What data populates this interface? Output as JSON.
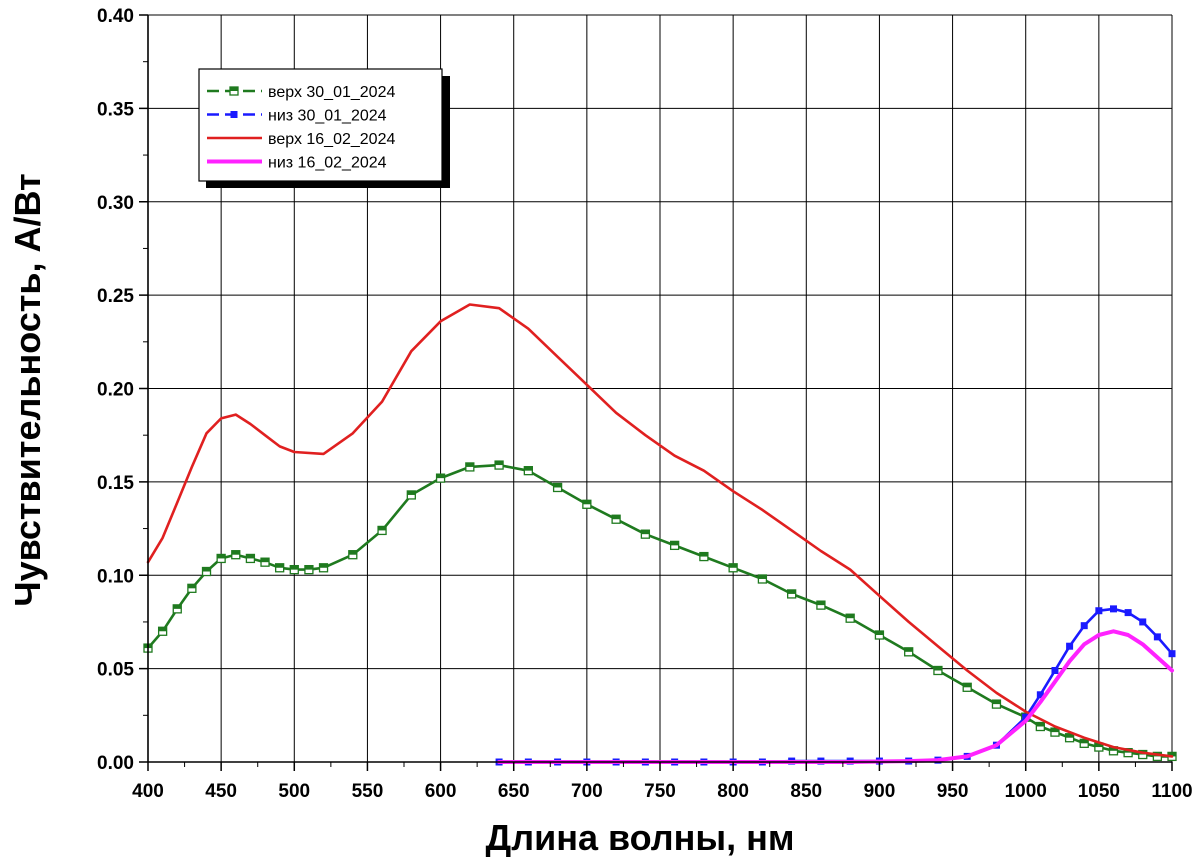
{
  "chart_data": {
    "type": "line",
    "xlabel": "Длина волны, нм",
    "ylabel": "Чувствительность, А/Вт",
    "xlim": [
      400,
      1100
    ],
    "ylim": [
      0,
      0.4
    ],
    "x_ticks": [
      "400",
      "450",
      "500",
      "550",
      "600",
      "650",
      "700",
      "750",
      "800",
      "850",
      "900",
      "950",
      "1000",
      "1050",
      "1100"
    ],
    "y_ticks": [
      "0.00",
      "0.05",
      "0.10",
      "0.15",
      "0.20",
      "0.25",
      "0.30",
      "0.35",
      "0.40"
    ],
    "grid": true,
    "legend_position": "top-left",
    "series": [
      {
        "name": "верх 30_01_2024",
        "color": "#1f7a1f",
        "marker": "square-half",
        "points": [
          [
            400,
            0.061
          ],
          [
            410,
            0.07
          ],
          [
            420,
            0.082
          ],
          [
            430,
            0.093
          ],
          [
            440,
            0.102
          ],
          [
            450,
            0.109
          ],
          [
            460,
            0.111
          ],
          [
            470,
            0.109
          ],
          [
            480,
            0.107
          ],
          [
            490,
            0.104
          ],
          [
            500,
            0.103
          ],
          [
            510,
            0.103
          ],
          [
            520,
            0.104
          ],
          [
            540,
            0.111
          ],
          [
            560,
            0.124
          ],
          [
            580,
            0.143
          ],
          [
            600,
            0.152
          ],
          [
            620,
            0.158
          ],
          [
            640,
            0.159
          ],
          [
            660,
            0.156
          ],
          [
            680,
            0.147
          ],
          [
            700,
            0.138
          ],
          [
            720,
            0.13
          ],
          [
            740,
            0.122
          ],
          [
            760,
            0.116
          ],
          [
            780,
            0.11
          ],
          [
            800,
            0.104
          ],
          [
            820,
            0.098
          ],
          [
            840,
            0.09
          ],
          [
            860,
            0.084
          ],
          [
            880,
            0.077
          ],
          [
            900,
            0.068
          ],
          [
            920,
            0.059
          ],
          [
            940,
            0.049
          ],
          [
            960,
            0.04
          ],
          [
            980,
            0.031
          ],
          [
            1000,
            0.024
          ],
          [
            1010,
            0.019
          ],
          [
            1020,
            0.016
          ],
          [
            1030,
            0.013
          ],
          [
            1040,
            0.01
          ],
          [
            1050,
            0.008
          ],
          [
            1060,
            0.006
          ],
          [
            1070,
            0.005
          ],
          [
            1080,
            0.004
          ],
          [
            1090,
            0.003
          ],
          [
            1100,
            0.003
          ]
        ]
      },
      {
        "name": "низ 30_01_2024",
        "color": "#1a1aff",
        "marker": "square-filled",
        "points": [
          [
            640,
            0.0
          ],
          [
            660,
            0.0
          ],
          [
            680,
            0.0
          ],
          [
            700,
            0.0
          ],
          [
            720,
            0.0
          ],
          [
            740,
            0.0
          ],
          [
            760,
            0.0
          ],
          [
            780,
            0.0
          ],
          [
            800,
            0.0
          ],
          [
            820,
            0.0
          ],
          [
            840,
            0.0005
          ],
          [
            860,
            0.0005
          ],
          [
            880,
            0.0005
          ],
          [
            900,
            0.0005
          ],
          [
            920,
            0.0005
          ],
          [
            940,
            0.001
          ],
          [
            960,
            0.003
          ],
          [
            980,
            0.009
          ],
          [
            1000,
            0.024
          ],
          [
            1010,
            0.036
          ],
          [
            1020,
            0.049
          ],
          [
            1030,
            0.062
          ],
          [
            1040,
            0.073
          ],
          [
            1050,
            0.081
          ],
          [
            1060,
            0.082
          ],
          [
            1070,
            0.08
          ],
          [
            1080,
            0.075
          ],
          [
            1090,
            0.067
          ],
          [
            1100,
            0.058
          ]
        ]
      },
      {
        "name": "верх 16_02_2024",
        "color": "#e02020",
        "marker": "none",
        "points": [
          [
            400,
            0.107
          ],
          [
            410,
            0.12
          ],
          [
            420,
            0.139
          ],
          [
            430,
            0.158
          ],
          [
            440,
            0.176
          ],
          [
            450,
            0.184
          ],
          [
            460,
            0.186
          ],
          [
            470,
            0.181
          ],
          [
            480,
            0.175
          ],
          [
            490,
            0.169
          ],
          [
            500,
            0.166
          ],
          [
            520,
            0.165
          ],
          [
            540,
            0.176
          ],
          [
            560,
            0.193
          ],
          [
            580,
            0.22
          ],
          [
            600,
            0.236
          ],
          [
            620,
            0.245
          ],
          [
            640,
            0.243
          ],
          [
            660,
            0.232
          ],
          [
            680,
            0.217
          ],
          [
            700,
            0.202
          ],
          [
            720,
            0.187
          ],
          [
            740,
            0.175
          ],
          [
            760,
            0.164
          ],
          [
            780,
            0.156
          ],
          [
            800,
            0.145
          ],
          [
            820,
            0.135
          ],
          [
            840,
            0.124
          ],
          [
            860,
            0.113
          ],
          [
            880,
            0.103
          ],
          [
            900,
            0.089
          ],
          [
            920,
            0.075
          ],
          [
            940,
            0.062
          ],
          [
            960,
            0.049
          ],
          [
            980,
            0.037
          ],
          [
            1000,
            0.027
          ],
          [
            1020,
            0.019
          ],
          [
            1040,
            0.013
          ],
          [
            1060,
            0.008
          ],
          [
            1080,
            0.005
          ],
          [
            1100,
            0.003
          ]
        ]
      },
      {
        "name": "низ 16_02_2024",
        "color": "#ff22ff",
        "marker": "none",
        "points": [
          [
            640,
            0.0
          ],
          [
            700,
            0.0
          ],
          [
            760,
            0.0
          ],
          [
            820,
            0.0
          ],
          [
            880,
            0.0
          ],
          [
            920,
            0.0005
          ],
          [
            940,
            0.001
          ],
          [
            960,
            0.003
          ],
          [
            980,
            0.009
          ],
          [
            1000,
            0.022
          ],
          [
            1010,
            0.032
          ],
          [
            1020,
            0.043
          ],
          [
            1030,
            0.054
          ],
          [
            1040,
            0.063
          ],
          [
            1050,
            0.068
          ],
          [
            1060,
            0.07
          ],
          [
            1070,
            0.068
          ],
          [
            1080,
            0.063
          ],
          [
            1090,
            0.056
          ],
          [
            1100,
            0.049
          ]
        ]
      }
    ]
  }
}
